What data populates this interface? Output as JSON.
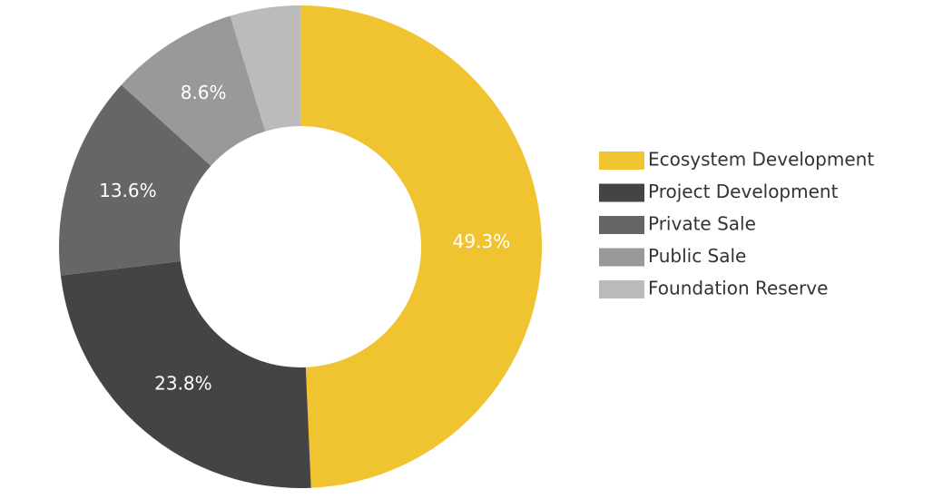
{
  "chart_data": {
    "type": "donut",
    "categories": [
      "Ecosystem Development",
      "Project Development",
      "Private Sale",
      "Public Sale",
      "Foundation Reserve"
    ],
    "values": [
      49.3,
      23.8,
      13.6,
      8.6,
      4.7
    ],
    "value_labels": [
      "49.3%",
      "23.8%",
      "13.6%",
      "8.6%",
      null
    ],
    "colors": [
      "#f0c330",
      "#444444",
      "#666666",
      "#999999",
      "#bbbbbb"
    ],
    "legend": "right"
  }
}
